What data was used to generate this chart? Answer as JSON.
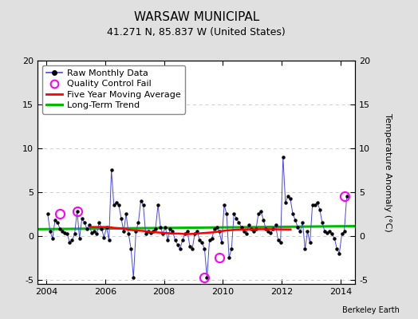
{
  "title": "WARSAW MUNICIPAL",
  "subtitle": "41.271 N, 85.837 W (United States)",
  "ylabel": "Temperature Anomaly (°C)",
  "attribution": "Berkeley Earth",
  "ylim": [
    -5.5,
    20
  ],
  "yticks": [
    -5,
    0,
    5,
    10,
    15,
    20
  ],
  "xlim": [
    2003.7,
    2014.5
  ],
  "xticks": [
    2004,
    2006,
    2008,
    2010,
    2012,
    2014
  ],
  "fig_bg_color": "#e0e0e0",
  "plot_bg_color": "#ffffff",
  "raw_x": [
    2004.042,
    2004.125,
    2004.208,
    2004.292,
    2004.375,
    2004.458,
    2004.542,
    2004.625,
    2004.708,
    2004.792,
    2004.875,
    2004.958,
    2005.042,
    2005.125,
    2005.208,
    2005.292,
    2005.375,
    2005.458,
    2005.542,
    2005.625,
    2005.708,
    2005.792,
    2005.875,
    2005.958,
    2006.042,
    2006.125,
    2006.208,
    2006.292,
    2006.375,
    2006.458,
    2006.542,
    2006.625,
    2006.708,
    2006.792,
    2006.875,
    2006.958,
    2007.042,
    2007.125,
    2007.208,
    2007.292,
    2007.375,
    2007.458,
    2007.542,
    2007.625,
    2007.708,
    2007.792,
    2007.875,
    2007.958,
    2008.042,
    2008.125,
    2008.208,
    2008.292,
    2008.375,
    2008.458,
    2008.542,
    2008.625,
    2008.708,
    2008.792,
    2008.875,
    2008.958,
    2009.042,
    2009.125,
    2009.208,
    2009.292,
    2009.375,
    2009.458,
    2009.542,
    2009.625,
    2009.708,
    2009.792,
    2009.875,
    2009.958,
    2010.042,
    2010.125,
    2010.208,
    2010.292,
    2010.375,
    2010.458,
    2010.542,
    2010.625,
    2010.708,
    2010.792,
    2010.875,
    2010.958,
    2011.042,
    2011.125,
    2011.208,
    2011.292,
    2011.375,
    2011.458,
    2011.542,
    2011.625,
    2011.708,
    2011.792,
    2011.875,
    2011.958,
    2012.042,
    2012.125,
    2012.208,
    2012.292,
    2012.375,
    2012.458,
    2012.542,
    2012.625,
    2012.708,
    2012.792,
    2012.875,
    2012.958,
    2013.042,
    2013.125,
    2013.208,
    2013.292,
    2013.375,
    2013.458,
    2013.542,
    2013.625,
    2013.708,
    2013.792,
    2013.875,
    2013.958,
    2014.042,
    2014.125,
    2014.208
  ],
  "raw_y": [
    2.5,
    0.5,
    -0.3,
    1.8,
    1.5,
    0.8,
    0.5,
    0.3,
    0.2,
    -0.8,
    -0.5,
    0.2,
    2.8,
    -0.3,
    2.0,
    1.5,
    0.8,
    1.2,
    0.3,
    0.5,
    0.2,
    1.5,
    0.8,
    -0.2,
    1.0,
    -0.5,
    7.5,
    3.5,
    3.8,
    3.5,
    2.0,
    0.5,
    2.5,
    0.2,
    -1.5,
    -4.8,
    0.5,
    1.5,
    4.0,
    3.5,
    0.2,
    0.5,
    0.3,
    0.5,
    0.8,
    3.5,
    1.0,
    0.2,
    1.0,
    -0.5,
    0.8,
    0.5,
    -0.5,
    -1.0,
    -1.5,
    -0.5,
    0.2,
    0.5,
    -1.2,
    -1.5,
    0.2,
    0.5,
    -0.5,
    -0.8,
    -1.5,
    -4.8,
    -0.5,
    -0.3,
    0.8,
    1.0,
    0.5,
    -0.8,
    3.5,
    2.5,
    -2.5,
    -1.5,
    2.5,
    2.0,
    1.5,
    1.0,
    0.5,
    0.2,
    1.2,
    0.8,
    0.5,
    0.8,
    2.5,
    2.8,
    1.8,
    0.8,
    0.5,
    0.3,
    0.8,
    1.2,
    -0.5,
    -0.8,
    9.0,
    3.8,
    4.5,
    4.2,
    2.5,
    1.8,
    1.0,
    0.5,
    1.5,
    -1.5,
    0.5,
    -0.8,
    3.5,
    3.5,
    3.8,
    3.0,
    1.5,
    0.5,
    0.3,
    0.5,
    0.2,
    -0.3,
    -1.5,
    -2.0,
    0.2,
    0.5,
    4.5
  ],
  "qc_fail_x": [
    2004.458,
    2005.042,
    2009.375,
    2009.875,
    2014.125
  ],
  "qc_fail_y": [
    2.5,
    2.8,
    -4.8,
    -2.5,
    4.5
  ],
  "moving_avg_x": [
    2005.5,
    2005.7,
    2005.9,
    2006.1,
    2006.3,
    2006.5,
    2006.7,
    2006.9,
    2007.1,
    2007.3,
    2007.5,
    2007.7,
    2007.9,
    2008.1,
    2008.3,
    2008.5,
    2008.7,
    2008.9,
    2009.1,
    2009.3,
    2009.5,
    2009.7,
    2009.9,
    2010.1,
    2010.3,
    2010.5,
    2010.7,
    2010.9,
    2011.1,
    2011.3,
    2011.5,
    2011.7,
    2011.9,
    2012.1,
    2012.3
  ],
  "moving_avg_y": [
    1.0,
    1.0,
    1.0,
    1.0,
    0.9,
    0.85,
    0.75,
    0.65,
    0.6,
    0.55,
    0.45,
    0.4,
    0.35,
    0.3,
    0.25,
    0.25,
    0.2,
    0.2,
    0.25,
    0.3,
    0.35,
    0.4,
    0.5,
    0.6,
    0.65,
    0.7,
    0.72,
    0.73,
    0.74,
    0.75,
    0.75,
    0.74,
    0.73,
    0.72,
    0.72
  ],
  "trend_x": [
    2003.7,
    2014.5
  ],
  "trend_y": [
    0.75,
    1.1
  ],
  "raw_color": "#4444ff",
  "dot_color": "#000000",
  "ma_color": "#ff0000",
  "trend_color": "#00bb00",
  "qc_color": "#ff00ff",
  "grid_color": "#cccccc",
  "title_fontsize": 11,
  "subtitle_fontsize": 9,
  "tick_fontsize": 8,
  "legend_fontsize": 8
}
